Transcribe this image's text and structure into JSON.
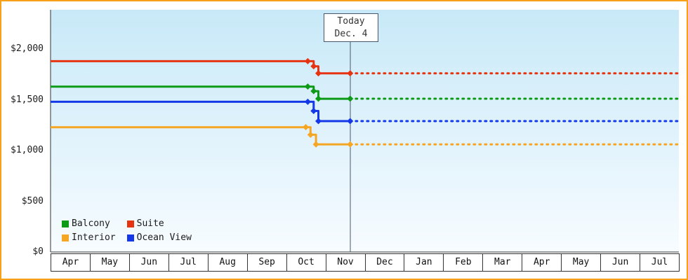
{
  "frame": {
    "border_color": "#F9A01B"
  },
  "plot_background": {
    "top": "#C8E9F8",
    "bottom": "#F7FCFF"
  },
  "today_marker": {
    "line1": "Today",
    "line2": "Dec. 4"
  },
  "legend": {
    "items": [
      {
        "label": "Balcony",
        "color": "#0D9A16"
      },
      {
        "label": "Suite",
        "color": "#E63312"
      },
      {
        "label": "Interior",
        "color": "#F5A623"
      },
      {
        "label": "Ocean View",
        "color": "#1438E8"
      }
    ]
  },
  "chart_data": {
    "type": "line",
    "x_axis": {
      "labels": [
        "Apr",
        "May",
        "Jun",
        "Jul",
        "Aug",
        "Sep",
        "Oct",
        "Nov",
        "Dec",
        "Jan",
        "Feb",
        "Mar",
        "Apr",
        "May",
        "Jun",
        "Jul"
      ],
      "units_total": 16
    },
    "y_axis": {
      "min": 0,
      "max": 2385,
      "ticks": [
        {
          "label": "$2,000",
          "value": 2000
        },
        {
          "label": "$1,500",
          "value": 1500
        },
        {
          "label": "$1,000",
          "value": 1000
        },
        {
          "label": "$500",
          "value": 500
        },
        {
          "label": "$0",
          "value": 0
        }
      ]
    },
    "today": {
      "label": "Today",
      "date": "Dec. 4",
      "x_unit": 7.63
    },
    "series": [
      {
        "name": "Suite",
        "color": "#E63312",
        "solid_points": [
          [
            0,
            1880
          ],
          [
            6.7,
            1880
          ],
          [
            6.7,
            1830
          ],
          [
            6.82,
            1830
          ],
          [
            6.82,
            1760
          ],
          [
            7.63,
            1760
          ]
        ],
        "markers": [
          [
            6.55,
            1880
          ],
          [
            6.7,
            1830
          ],
          [
            6.82,
            1760
          ],
          [
            7.63,
            1760
          ]
        ],
        "forecast": {
          "value": 1760,
          "style": "dotted",
          "from_unit": 7.63,
          "to_unit": 16
        }
      },
      {
        "name": "Balcony",
        "color": "#0D9A16",
        "solid_points": [
          [
            0,
            1630
          ],
          [
            6.7,
            1630
          ],
          [
            6.7,
            1585
          ],
          [
            6.82,
            1585
          ],
          [
            6.82,
            1510
          ],
          [
            7.63,
            1510
          ]
        ],
        "markers": [
          [
            6.55,
            1630
          ],
          [
            6.7,
            1585
          ],
          [
            6.82,
            1510
          ],
          [
            7.63,
            1510
          ]
        ],
        "forecast": {
          "value": 1510,
          "style": "dotted",
          "from_unit": 7.63,
          "to_unit": 16
        }
      },
      {
        "name": "Ocean View",
        "color": "#1438E8",
        "solid_points": [
          [
            0,
            1480
          ],
          [
            6.7,
            1480
          ],
          [
            6.7,
            1390
          ],
          [
            6.82,
            1390
          ],
          [
            6.82,
            1290
          ],
          [
            7.63,
            1290
          ]
        ],
        "markers": [
          [
            6.55,
            1480
          ],
          [
            6.7,
            1390
          ],
          [
            6.82,
            1290
          ],
          [
            7.63,
            1290
          ]
        ],
        "forecast": {
          "value": 1290,
          "style": "dotted",
          "from_unit": 7.63,
          "to_unit": 16
        }
      },
      {
        "name": "Interior",
        "color": "#F5A623",
        "solid_points": [
          [
            0,
            1230
          ],
          [
            6.62,
            1230
          ],
          [
            6.62,
            1155
          ],
          [
            6.76,
            1155
          ],
          [
            6.76,
            1060
          ],
          [
            7.63,
            1060
          ]
        ],
        "markers": [
          [
            6.5,
            1230
          ],
          [
            6.62,
            1155
          ],
          [
            6.76,
            1060
          ],
          [
            7.63,
            1060
          ]
        ],
        "forecast": {
          "value": 1060,
          "style": "dotted",
          "from_unit": 7.63,
          "to_unit": 16
        }
      }
    ]
  }
}
